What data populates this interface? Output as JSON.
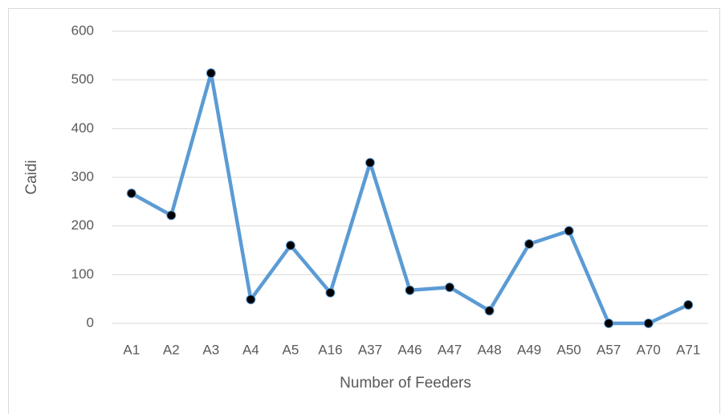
{
  "chart_data": {
    "type": "line",
    "x_label": "Number of Feeders",
    "y_label": "Caidi",
    "categories": [
      "A1",
      "A2",
      "A3",
      "A4",
      "A5",
      "A16",
      "A37",
      "A46",
      "A47",
      "A48",
      "A49",
      "A50",
      "A57",
      "A70",
      "A71"
    ],
    "series": [
      {
        "name": "Caidi",
        "color": "#5b9bd5",
        "marker_color": "#000000",
        "values": [
          267,
          222,
          514,
          49,
          160,
          63,
          330,
          68,
          74,
          26,
          163,
          190,
          0,
          0,
          38
        ]
      }
    ],
    "ylim": [
      0,
      600
    ],
    "yticks": [
      0,
      100,
      200,
      300,
      400,
      500,
      600
    ],
    "grid": true
  }
}
